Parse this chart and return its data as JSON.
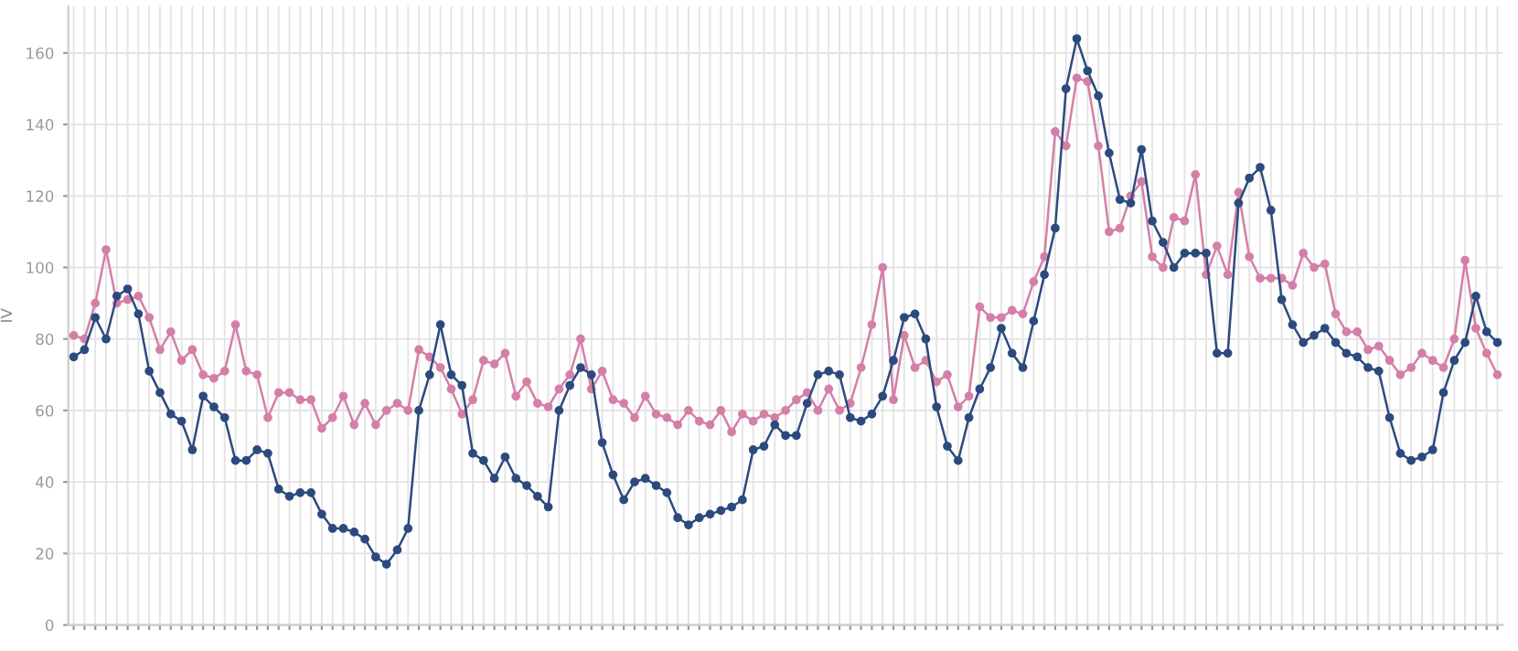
{
  "chart_data": {
    "type": "line",
    "ylabel": "IV",
    "ylim": [
      0,
      173
    ],
    "yticks": [
      0,
      20,
      40,
      60,
      80,
      100,
      120,
      140,
      160
    ],
    "categories": [
      null,
      null,
      null,
      null,
      null,
      null,
      null,
      null,
      null,
      null,
      null,
      null,
      null,
      null,
      null,
      null,
      null,
      null,
      null,
      null,
      null,
      null,
      null,
      null,
      null,
      null,
      null,
      null,
      null,
      null,
      null,
      null,
      null,
      null,
      null,
      null,
      null,
      null,
      null,
      null,
      null,
      null,
      null,
      null,
      null,
      null,
      null,
      null,
      null,
      null,
      null,
      null,
      null,
      null,
      null,
      null,
      null,
      null,
      null,
      null,
      null,
      null,
      null,
      null,
      null,
      null,
      null,
      null,
      null,
      null,
      null,
      null,
      null,
      null,
      null,
      null,
      null,
      null,
      null,
      null,
      null,
      null,
      null,
      null,
      null,
      null,
      null,
      null,
      null,
      null,
      null,
      null,
      null,
      null,
      null,
      null,
      null,
      null,
      null,
      null,
      null,
      null,
      null,
      null,
      null,
      null,
      null,
      null,
      null,
      null,
      null,
      null,
      null,
      null,
      null,
      null,
      null,
      null,
      null,
      null,
      null,
      null,
      null,
      null,
      null,
      null,
      null,
      null,
      null,
      null,
      null,
      null,
      null
    ],
    "grid": true,
    "marker": "circle",
    "line_style": "solid",
    "series": [
      {
        "color": "#d47fa8",
        "values": [
          81,
          80,
          90,
          105,
          90,
          91,
          92,
          86,
          77,
          82,
          74,
          77,
          70,
          69,
          71,
          84,
          71,
          70,
          58,
          65,
          65,
          63,
          63,
          55,
          58,
          64,
          56,
          62,
          56,
          60,
          62,
          60,
          77,
          75,
          72,
          66,
          59,
          63,
          74,
          73,
          76,
          64,
          68,
          62,
          61,
          66,
          70,
          80,
          66,
          71,
          63,
          62,
          58,
          64,
          59,
          58,
          56,
          60,
          57,
          56,
          60,
          54,
          59,
          57,
          59,
          58,
          60,
          63,
          65,
          60,
          66,
          60,
          62,
          72,
          84,
          100,
          63,
          81,
          72,
          74,
          68,
          70,
          61,
          64,
          89,
          86,
          86,
          88,
          87,
          96,
          103,
          138,
          134,
          153,
          152,
          134,
          110,
          111,
          120,
          124,
          103,
          100,
          114,
          113,
          126,
          98,
          106,
          98,
          121,
          103,
          97,
          97,
          97,
          95,
          104,
          100,
          101,
          87,
          82,
          82,
          77,
          78,
          74,
          70,
          72,
          76,
          74,
          72,
          80,
          102,
          83,
          76,
          70
        ]
      },
      {
        "color": "#2c4a7e",
        "values": [
          75,
          77,
          86,
          80,
          92,
          94,
          87,
          71,
          65,
          59,
          57,
          49,
          64,
          61,
          58,
          46,
          46,
          49,
          48,
          38,
          36,
          37,
          37,
          31,
          27,
          27,
          26,
          24,
          19,
          17,
          21,
          27,
          60,
          70,
          84,
          70,
          67,
          48,
          46,
          41,
          47,
          41,
          39,
          36,
          33,
          60,
          67,
          72,
          70,
          51,
          42,
          35,
          40,
          41,
          39,
          37,
          30,
          28,
          30,
          31,
          32,
          33,
          35,
          49,
          50,
          56,
          53,
          53,
          62,
          70,
          71,
          70,
          58,
          57,
          59,
          64,
          74,
          86,
          87,
          80,
          61,
          50,
          46,
          58,
          66,
          72,
          83,
          76,
          72,
          85,
          98,
          111,
          150,
          164,
          155,
          148,
          132,
          119,
          118,
          133,
          113,
          107,
          100,
          104,
          104,
          104,
          76,
          76,
          118,
          125,
          128,
          116,
          91,
          84,
          79,
          81,
          83,
          79,
          76,
          75,
          72,
          71,
          58,
          48,
          46,
          47,
          49,
          65,
          74,
          79,
          92,
          82,
          79
        ]
      }
    ]
  }
}
